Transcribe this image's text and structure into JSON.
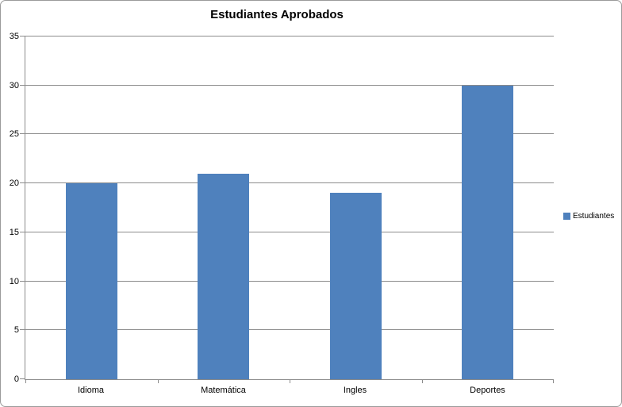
{
  "chart_data": {
    "type": "bar",
    "title": "Estudiantes Aprobados",
    "categories": [
      "Idioma",
      "Matemática",
      "Ingles",
      "Deportes"
    ],
    "series": [
      {
        "name": "Estudiantes",
        "values": [
          20,
          21,
          19,
          30
        ]
      }
    ],
    "xlabel": "",
    "ylabel": "",
    "ylim": [
      0,
      35
    ],
    "yticks": [
      0,
      5,
      10,
      15,
      20,
      25,
      30,
      35
    ],
    "grid": true,
    "legend_position": "right",
    "colors": {
      "bar": "#4f81bd",
      "gridline": "#8c8c8c",
      "axis": "#8c8c8c",
      "border": "#9a9a9a",
      "text": "#000000"
    }
  }
}
